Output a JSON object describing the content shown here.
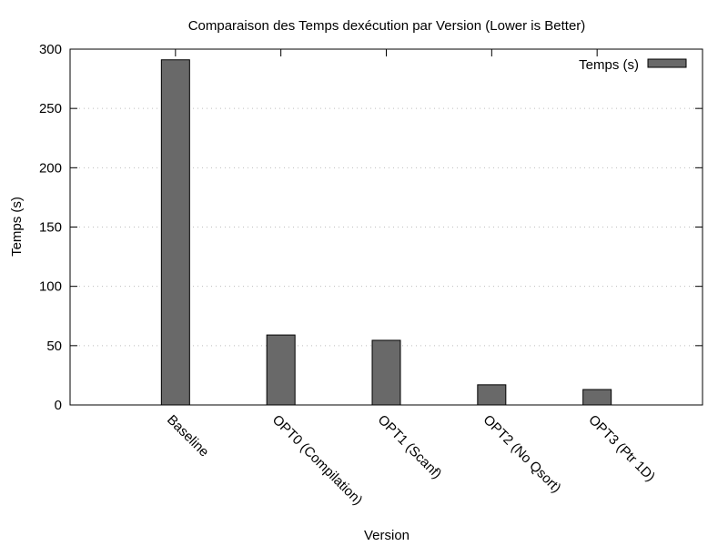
{
  "chart_data": {
    "type": "bar",
    "title": "Comparaison des Temps dexécution par Version (Lower is Better)",
    "xlabel": "Version",
    "ylabel": "Temps (s)",
    "categories": [
      "Baseline",
      "OPT0 (Compilation)",
      "OPT1 (Scanf)",
      "OPT2 (No Qsort)",
      "OPT3 (Ptr 1D)"
    ],
    "series": [
      {
        "name": "Temps (s)",
        "values": [
          291,
          59,
          54.5,
          17,
          13
        ],
        "color": "#696969"
      }
    ],
    "ylim": [
      0,
      300
    ],
    "yticks": [
      0,
      50,
      100,
      150,
      200,
      250,
      300
    ],
    "grid": true,
    "legend_position": "top-right"
  }
}
